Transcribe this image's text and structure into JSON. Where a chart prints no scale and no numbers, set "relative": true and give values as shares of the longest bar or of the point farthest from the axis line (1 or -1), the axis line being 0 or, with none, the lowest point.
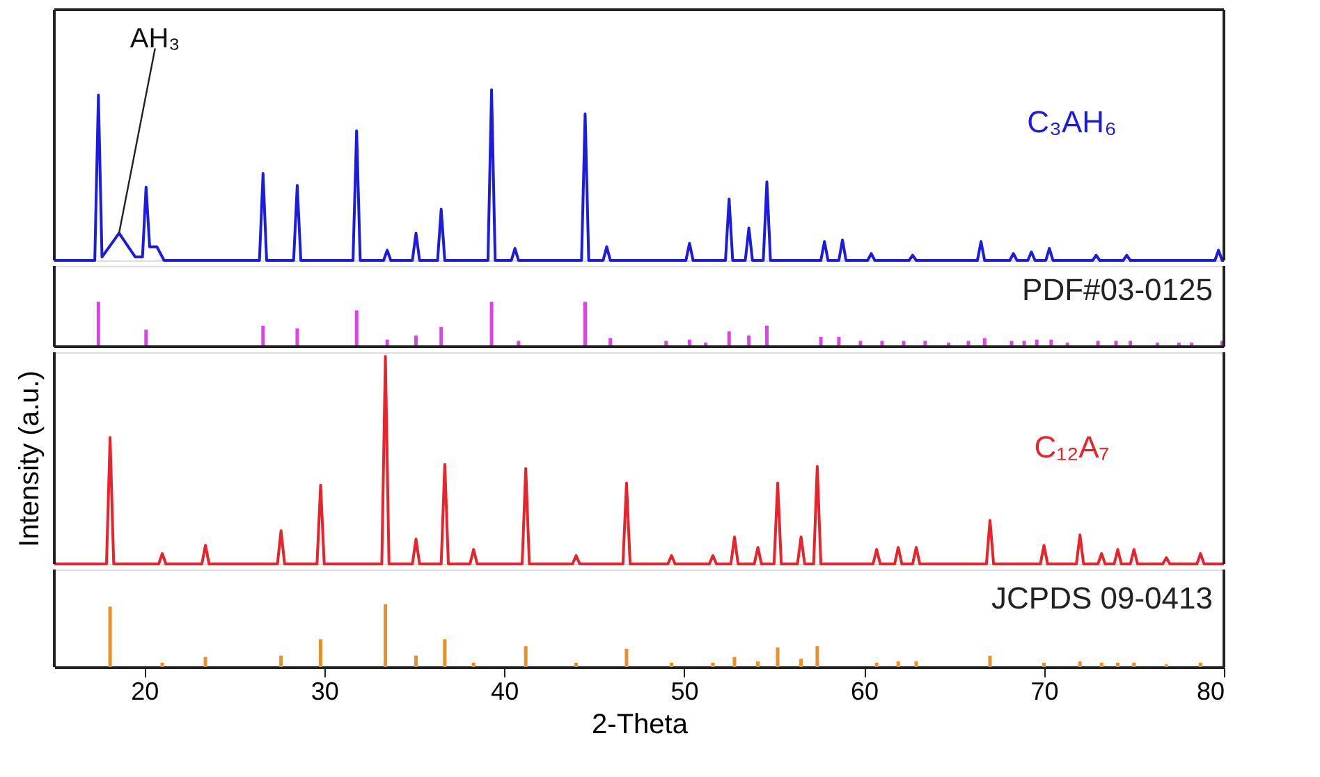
{
  "chart_data": [
    {
      "type": "line",
      "relative": true,
      "xlim": [
        15,
        80
      ],
      "xticks": [
        20,
        30,
        40,
        50,
        60,
        70,
        80
      ],
      "tick_labels": false,
      "annotations": [
        {
          "text": "AH₃",
          "x": 18.6,
          "y": 0.16
        }
      ],
      "series": [
        {
          "name": "C₃AH₆",
          "color": "#1c1ce0",
          "x": [
            15,
            17.25,
            17.45,
            17.65,
            18.6,
            19.5,
            19.9,
            20.1,
            20.3,
            20.7,
            21.1,
            26.4,
            26.6,
            26.8,
            28.3,
            28.5,
            28.7,
            31.6,
            31.8,
            32.0,
            33.3,
            33.5,
            33.7,
            34.9,
            35.1,
            35.3,
            36.3,
            36.5,
            36.7,
            39.1,
            39.3,
            39.5,
            40.4,
            40.6,
            40.8,
            44.3,
            44.5,
            44.7,
            45.5,
            45.7,
            45.9,
            50.1,
            50.3,
            50.5,
            52.3,
            52.5,
            52.7,
            53.4,
            53.6,
            53.8,
            54.4,
            54.6,
            54.8,
            57.6,
            57.8,
            58.0,
            58.6,
            58.8,
            59.0,
            60.2,
            60.4,
            60.6,
            62.5,
            62.7,
            62.9,
            66.3,
            66.5,
            66.7,
            68.1,
            68.3,
            68.5,
            69.1,
            69.3,
            69.5,
            70.1,
            70.3,
            70.5,
            72.7,
            72.9,
            73.1,
            74.4,
            74.6,
            74.8,
            79.5,
            79.7,
            79.9,
            80
          ],
          "values": [
            0,
            0,
            0.97,
            0.02,
            0.16,
            0.02,
            0.02,
            0.43,
            0.08,
            0.08,
            0,
            0,
            0.51,
            0,
            0,
            0.44,
            0,
            0,
            0.76,
            0,
            0,
            0.06,
            0,
            0,
            0.16,
            0,
            0,
            0.3,
            0,
            0,
            1.0,
            0,
            0,
            0.07,
            0,
            0,
            0.86,
            0,
            0,
            0.08,
            0,
            0,
            0.1,
            0,
            0,
            0.36,
            0,
            0,
            0.19,
            0,
            0,
            0.46,
            0,
            0,
            0.11,
            0,
            0,
            0.12,
            0,
            0,
            0.04,
            0,
            0,
            0.03,
            0,
            0,
            0.11,
            0,
            0,
            0.04,
            0,
            0,
            0.05,
            0,
            0,
            0.07,
            0,
            0,
            0.03,
            0,
            0,
            0.03,
            0,
            0,
            0.06,
            0,
            0
          ]
        }
      ]
    },
    {
      "type": "bar",
      "relative": true,
      "xlim": [
        15,
        80
      ],
      "xticks": [
        20,
        30,
        40,
        50,
        60,
        70,
        80
      ],
      "tick_labels": false,
      "series": [
        {
          "name": "PDF#03-0125",
          "color": "#e040e8",
          "x": [
            17.45,
            20.1,
            26.6,
            28.5,
            31.8,
            33.5,
            35.1,
            36.5,
            39.3,
            40.8,
            44.5,
            45.9,
            49.0,
            50.3,
            51.2,
            52.5,
            53.6,
            54.6,
            57.6,
            58.6,
            59.8,
            61.0,
            62.2,
            63.4,
            64.7,
            65.8,
            66.7,
            68.2,
            68.9,
            69.6,
            70.4,
            71.3,
            73.0,
            74.0,
            74.8,
            76.3,
            77.5,
            78.2,
            79.9
          ],
          "values": [
            1.0,
            0.38,
            0.47,
            0.41,
            0.81,
            0.16,
            0.25,
            0.44,
            1.0,
            0.13,
            1.0,
            0.19,
            0.13,
            0.16,
            0.09,
            0.34,
            0.25,
            0.47,
            0.22,
            0.22,
            0.13,
            0.13,
            0.13,
            0.13,
            0.09,
            0.13,
            0.19,
            0.13,
            0.13,
            0.16,
            0.16,
            0.09,
            0.13,
            0.13,
            0.13,
            0.09,
            0.09,
            0.09,
            0.13
          ]
        }
      ]
    },
    {
      "type": "line",
      "relative": true,
      "xlim": [
        15,
        80
      ],
      "xticks": [
        20,
        30,
        40,
        50,
        60,
        70,
        80
      ],
      "tick_labels": false,
      "ylabel": "Intensity (a.u.)",
      "series": [
        {
          "name": "C₁₂A₇",
          "color": "#e8232b",
          "x": [
            15,
            17.9,
            18.1,
            18.3,
            20.8,
            21.0,
            21.2,
            23.2,
            23.4,
            23.6,
            27.4,
            27.6,
            27.8,
            29.6,
            29.8,
            30.0,
            33.2,
            33.4,
            33.6,
            34.9,
            35.1,
            35.3,
            36.5,
            36.7,
            36.9,
            38.1,
            38.3,
            38.5,
            41.0,
            41.2,
            41.4,
            43.8,
            44.0,
            44.2,
            46.6,
            46.8,
            47.0,
            49.1,
            49.3,
            49.5,
            51.4,
            51.6,
            51.8,
            52.6,
            52.8,
            53.0,
            53.9,
            54.1,
            54.3,
            55.0,
            55.2,
            55.4,
            56.3,
            56.5,
            56.7,
            57.2,
            57.4,
            57.6,
            60.5,
            60.7,
            60.9,
            61.7,
            61.9,
            62.1,
            62.7,
            62.9,
            63.1,
            66.8,
            67.0,
            67.2,
            69.8,
            70.0,
            70.2,
            71.8,
            72.0,
            72.2,
            73.0,
            73.2,
            73.4,
            73.9,
            74.1,
            74.3,
            74.8,
            75.0,
            75.2,
            76.6,
            76.8,
            77.0,
            78.5,
            78.7,
            78.9,
            80
          ],
          "values": [
            0,
            0,
            0.61,
            0,
            0,
            0.05,
            0,
            0,
            0.09,
            0,
            0,
            0.16,
            0,
            0,
            0.38,
            0,
            0,
            1.0,
            0,
            0,
            0.12,
            0,
            0,
            0.48,
            0,
            0,
            0.07,
            0,
            0,
            0.46,
            0,
            0,
            0.04,
            0,
            0,
            0.39,
            0,
            0,
            0.04,
            0,
            0,
            0.04,
            0,
            0,
            0.13,
            0,
            0,
            0.08,
            0,
            0,
            0.39,
            0,
            0,
            0.13,
            0,
            0,
            0.47,
            0,
            0,
            0.07,
            0,
            0,
            0.08,
            0,
            0,
            0.08,
            0,
            0,
            0.21,
            0,
            0,
            0.09,
            0,
            0,
            0.14,
            0,
            0,
            0.05,
            0,
            0,
            0.07,
            0,
            0,
            0.07,
            0,
            0,
            0.03,
            0,
            0,
            0.05,
            0,
            0
          ]
        }
      ]
    },
    {
      "type": "bar",
      "relative": true,
      "xlim": [
        15,
        80
      ],
      "xticks": [
        20,
        30,
        40,
        50,
        60,
        70,
        80
      ],
      "tick_labels": "x",
      "xlabel": "2-Theta",
      "series": [
        {
          "name": "JCPDS 09-0413",
          "color": "#e8902a",
          "x": [
            18.1,
            21.0,
            23.4,
            27.6,
            29.8,
            33.4,
            35.1,
            36.7,
            38.3,
            41.2,
            44.0,
            46.8,
            49.3,
            51.6,
            52.8,
            54.1,
            55.2,
            56.5,
            57.4,
            60.7,
            61.9,
            62.9,
            67.0,
            70.0,
            72.0,
            73.2,
            74.1,
            75.0,
            76.8,
            78.7
          ],
          "values": [
            0.96,
            0.07,
            0.16,
            0.18,
            0.44,
            1.0,
            0.18,
            0.44,
            0.07,
            0.33,
            0.07,
            0.29,
            0.07,
            0.07,
            0.16,
            0.09,
            0.31,
            0.13,
            0.33,
            0.07,
            0.09,
            0.09,
            0.18,
            0.07,
            0.09,
            0.07,
            0.07,
            0.07,
            0.04,
            0.07
          ]
        }
      ]
    }
  ]
}
